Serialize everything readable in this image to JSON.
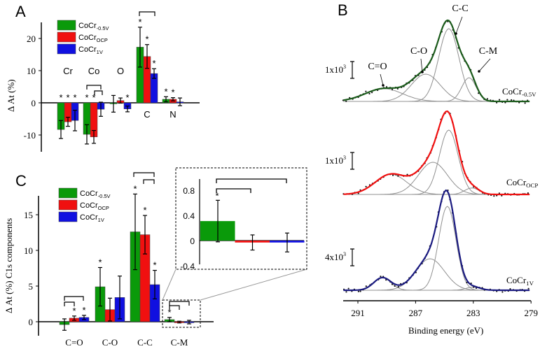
{
  "colors": {
    "green": "#0a9a0a",
    "red": "#f01010",
    "blue": "#1010e0",
    "fitTop": "#1a5a1a",
    "fitMid": "#f01010",
    "fitBot": "#1a1a80",
    "component": "#909090"
  },
  "chart_data": [
    {
      "panel": "A",
      "type": "bar",
      "ylabel": "Δ  At (%)",
      "yticks": [
        "20",
        "10",
        "0",
        "-10"
      ],
      "ylim": [
        -15,
        25
      ],
      "categories": [
        "Cr",
        "Co",
        "O",
        "C",
        "N"
      ],
      "series": [
        {
          "name": "CoCr",
          "sub": "-0.5V",
          "values": [
            -8.3,
            -9.8,
            -0.3,
            17.3,
            1.1
          ],
          "errors": [
            2.8,
            3.0,
            2.6,
            6.2,
            0.8
          ],
          "sig": [
            true,
            true,
            false,
            true,
            true
          ]
        },
        {
          "name": "CoCr",
          "sub": "OCP",
          "values": [
            -5.9,
            -10.6,
            0.7,
            14.4,
            1.1
          ],
          "errors": [
            1.4,
            2.0,
            0.8,
            3.7,
            0.5
          ],
          "sig": [
            true,
            true,
            false,
            true,
            true
          ]
        },
        {
          "name": "CoCr",
          "sub": "1V",
          "values": [
            -5.5,
            -2.0,
            -1.9,
            9.1,
            0.3
          ],
          "errors": [
            3.2,
            2.2,
            0.9,
            1.5,
            1.2
          ],
          "sig": [
            true,
            false,
            true,
            true,
            false
          ]
        }
      ]
    },
    {
      "panel": "B",
      "type": "line",
      "xlabel": "Binding energy (eV)",
      "xticks": [
        "291",
        "287",
        "283",
        "279"
      ],
      "xlim": [
        292,
        279
      ],
      "peak_labels": [
        "C=O",
        "C-O",
        "C-C",
        "C-M"
      ],
      "spectra": [
        {
          "name": "CoCr",
          "sub": "-0.5V",
          "scale": "1x10",
          "exp": "3",
          "peaks": [
            [
              289.2,
              0.14,
              1.3
            ],
            [
              286.3,
              0.3,
              1.0
            ],
            [
              284.7,
              0.8,
              0.7
            ],
            [
              283.3,
              0.26,
              0.5
            ]
          ]
        },
        {
          "name": "CoCr",
          "sub": "OCP",
          "scale": "1x10",
          "exp": "3",
          "peaks": [
            [
              288.7,
              0.25,
              1.1
            ],
            [
              285.8,
              0.4,
              1.0
            ],
            [
              284.7,
              0.8,
              0.65
            ],
            [
              283.1,
              0.08,
              0.5
            ]
          ]
        },
        {
          "name": "CoCr",
          "sub": "1V",
          "scale": "4x10",
          "exp": "3",
          "peaks": [
            [
              289.3,
              0.12,
              0.6
            ],
            [
              286,
              0.3,
              1.0
            ],
            [
              284.8,
              0.8,
              0.6
            ],
            [
              283,
              0.03,
              0.5
            ]
          ]
        }
      ]
    },
    {
      "panel": "C",
      "type": "bar",
      "ylabel": "Δ  At (%) C1s components",
      "yticks": [
        "15",
        "10",
        "5",
        "0"
      ],
      "ylim": [
        -2,
        18
      ],
      "categories": [
        "C=O",
        "C-O",
        "C-C",
        "C-M"
      ],
      "series": [
        {
          "name": "CoCr",
          "sub": "-0.5V",
          "values": [
            -0.4,
            4.9,
            12.6,
            0.3
          ],
          "errors": [
            0.8,
            2.7,
            5.3,
            0.3
          ],
          "sig": [
            false,
            true,
            true,
            true
          ]
        },
        {
          "name": "CoCr",
          "sub": "OCP",
          "values": [
            0.5,
            1.7,
            12.2,
            -0.05
          ],
          "errors": [
            0.3,
            1.6,
            2.7,
            0.12
          ],
          "sig": [
            true,
            false,
            true,
            false
          ]
        },
        {
          "name": "CoCr",
          "sub": "1V",
          "values": [
            0.6,
            3.4,
            5.2,
            -0.05
          ],
          "errors": [
            0.3,
            3.0,
            2.0,
            0.25
          ],
          "sig": [
            true,
            false,
            true,
            false
          ]
        }
      ],
      "inset": {
        "yticks": [
          "0.8",
          "0.4",
          "0",
          "-0.4"
        ],
        "values": [
          0.31,
          -0.03,
          -0.03
        ],
        "errors": [
          0.33,
          0.12,
          0.15
        ]
      }
    }
  ],
  "panel_labels": [
    "A",
    "B",
    "C"
  ]
}
